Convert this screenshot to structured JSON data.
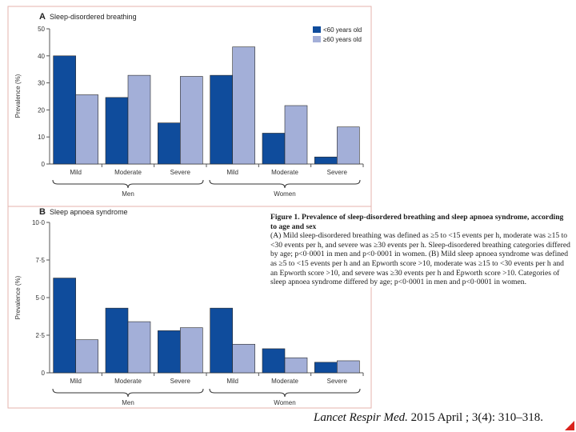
{
  "chart_data": [
    {
      "type": "bar",
      "panel_letter": "A",
      "title": "Sleep-disordered breathing",
      "ylabel": "Prevalence (%)",
      "ylim": [
        0,
        50
      ],
      "yticks": [
        "0",
        "10",
        "20",
        "30",
        "40",
        "50"
      ],
      "categories": [
        "Mild",
        "Moderate",
        "Severe",
        "Mild",
        "Moderate",
        "Severe"
      ],
      "groups": [
        "Men",
        "Women"
      ],
      "series": [
        {
          "name": "<60 years old",
          "color": "#0f4c9c",
          "values": [
            40,
            24.6,
            15.2,
            32.8,
            11.4,
            2.6
          ]
        },
        {
          "name": "≥60 years old",
          "color": "#a3afd8",
          "values": [
            25.6,
            32.8,
            32.4,
            43.3,
            21.6,
            13.7
          ]
        }
      ],
      "legend": "top-right"
    },
    {
      "type": "bar",
      "panel_letter": "B",
      "title": "Sleep apnoea syndrome",
      "ylabel": "Prevalence (%)",
      "ylim": [
        0,
        10
      ],
      "yticks": [
        "0",
        "2·5",
        "5·0",
        "7·5",
        "10·0"
      ],
      "categories": [
        "Mild",
        "Moderate",
        "Severe",
        "Mild",
        "Moderate",
        "Severe"
      ],
      "groups": [
        "Men",
        "Women"
      ],
      "series": [
        {
          "name": "<60 years old",
          "color": "#0f4c9c",
          "values": [
            6.3,
            4.3,
            2.8,
            4.3,
            1.6,
            0.7
          ]
        },
        {
          "name": "≥60 years old",
          "color": "#a3afd8",
          "values": [
            2.2,
            3.4,
            3.0,
            1.9,
            1.0,
            0.8
          ]
        }
      ]
    }
  ],
  "caption": {
    "title": "Figure 1. Prevalence of sleep-disordered breathing and sleep apnoea syndrome, according to age and sex",
    "body": "(A) Mild sleep-disordered breathing was defined as ≥5 to <15 events per h, moderate was ≥15 to <30 events per h, and severe was ≥30 events per h. Sleep-disordered breathing categories differed by age; p<0·0001 in men and p<0·0001 in women. (B) Mild sleep apnoea syndrome was defined as ≥5 to <15 events per h and an Epworth score >10, moderate was ≥15 to <30 events per h and an Epworth score >10, and severe was ≥30 events per h and Epworth score >10. Categories of sleep apnoea syndrome differed by age; p<0·0001 in men and p<0·0001 in women."
  },
  "citation": {
    "journal": "Lancet Respir Med.",
    "rest": " 2015 April ; 3(4): 310–318."
  },
  "colors": {
    "frame": "#e4b3ae",
    "axis": "#555555"
  }
}
